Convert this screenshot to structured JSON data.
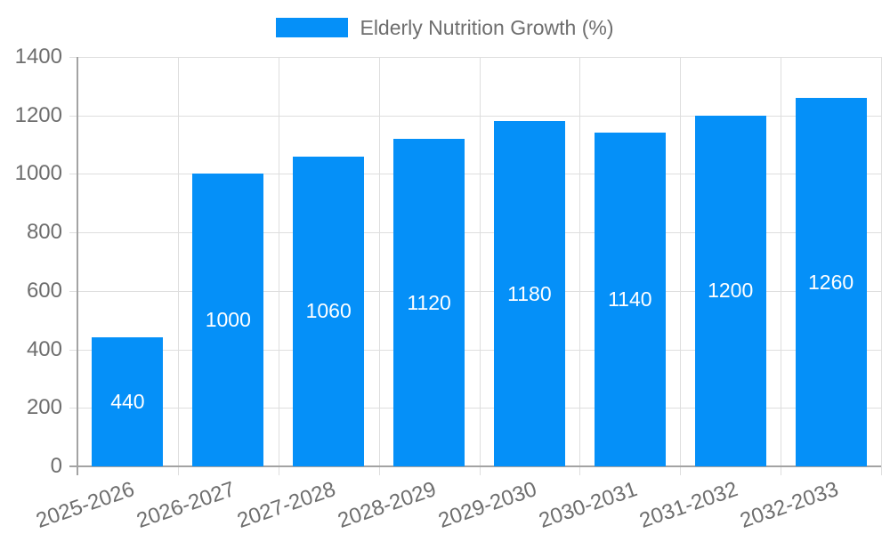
{
  "page": {
    "background": "#ffffff"
  },
  "chart_data": {
    "type": "bar",
    "title": "",
    "legend": "Elderly Nutrition Growth (%)",
    "legend_position": "top",
    "categories": [
      "2025-2026",
      "2026-2027",
      "2027-2028",
      "2028-2029",
      "2029-2030",
      "2030-2031",
      "2031-2032",
      "2032-2033"
    ],
    "values": [
      440,
      1000,
      1060,
      1120,
      1180,
      1140,
      1200,
      1260
    ],
    "value_labels": [
      "440",
      "1000",
      "1060",
      "1120",
      "1180",
      "1140",
      "1200",
      "1260"
    ],
    "xlabel": "",
    "ylabel": "",
    "ylim": [
      0,
      1400
    ],
    "yticks": [
      0,
      200,
      400,
      600,
      800,
      1000,
      1200,
      1400
    ],
    "grid": true,
    "x_tick_rotation_deg": -19,
    "colors": {
      "bar": "#0590f8",
      "value_label": "#ffffff",
      "axis_text": "#6e6e6e",
      "grid_line": "#dedede",
      "axis_line": "#a3a3a3",
      "background": "#ffffff"
    }
  }
}
